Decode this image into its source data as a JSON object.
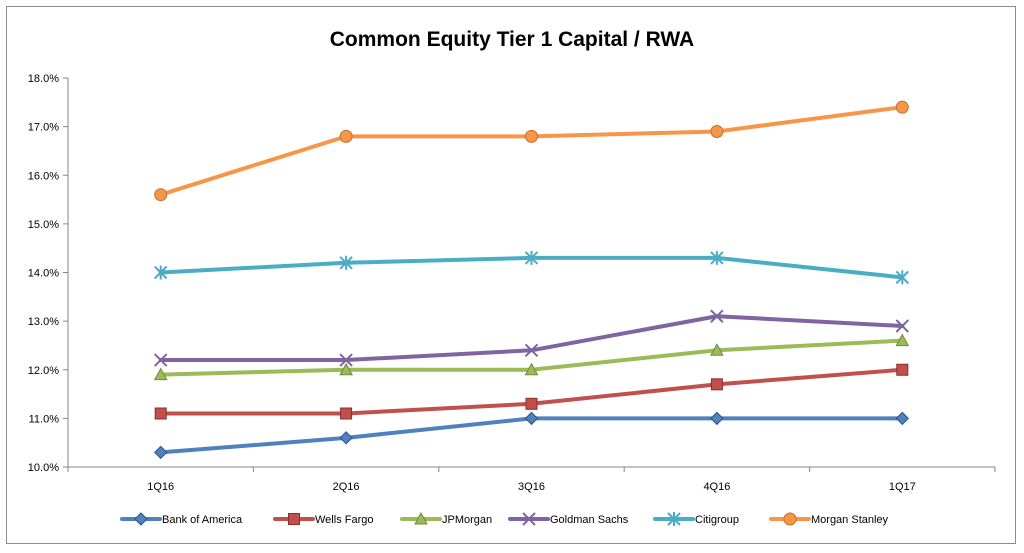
{
  "chart_data": {
    "type": "line",
    "title": "Common Equity Tier 1 Capital / RWA",
    "xlabel": "",
    "ylabel": "",
    "categories": [
      "1Q16",
      "2Q16",
      "3Q16",
      "4Q16",
      "1Q17"
    ],
    "ylim": [
      10.0,
      18.0
    ],
    "yticks": [
      "10.0%",
      "11.0%",
      "12.0%",
      "13.0%",
      "14.0%",
      "15.0%",
      "16.0%",
      "17.0%",
      "18.0%"
    ],
    "grid": false,
    "legend_position": "bottom",
    "series": [
      {
        "name": "Bank of America",
        "color": "#4f81bd",
        "marker": "diamond",
        "values": [
          10.3,
          10.6,
          11.0,
          11.0,
          11.0
        ]
      },
      {
        "name": "Wells Fargo",
        "color": "#c0504d",
        "marker": "square",
        "values": [
          11.1,
          11.1,
          11.3,
          11.7,
          12.0
        ]
      },
      {
        "name": "JPMorgan",
        "color": "#9bbb59",
        "marker": "triangle",
        "values": [
          11.9,
          12.0,
          12.0,
          12.4,
          12.6
        ]
      },
      {
        "name": "Goldman Sachs",
        "color": "#8064a2",
        "marker": "x",
        "values": [
          12.2,
          12.2,
          12.4,
          13.1,
          12.9
        ]
      },
      {
        "name": "Citigroup",
        "color": "#4bacc6",
        "marker": "star",
        "values": [
          14.0,
          14.2,
          14.3,
          14.3,
          13.9
        ]
      },
      {
        "name": "Morgan Stanley",
        "color": "#f79646",
        "marker": "circle",
        "values": [
          15.6,
          16.8,
          16.8,
          16.9,
          17.4
        ]
      }
    ]
  }
}
